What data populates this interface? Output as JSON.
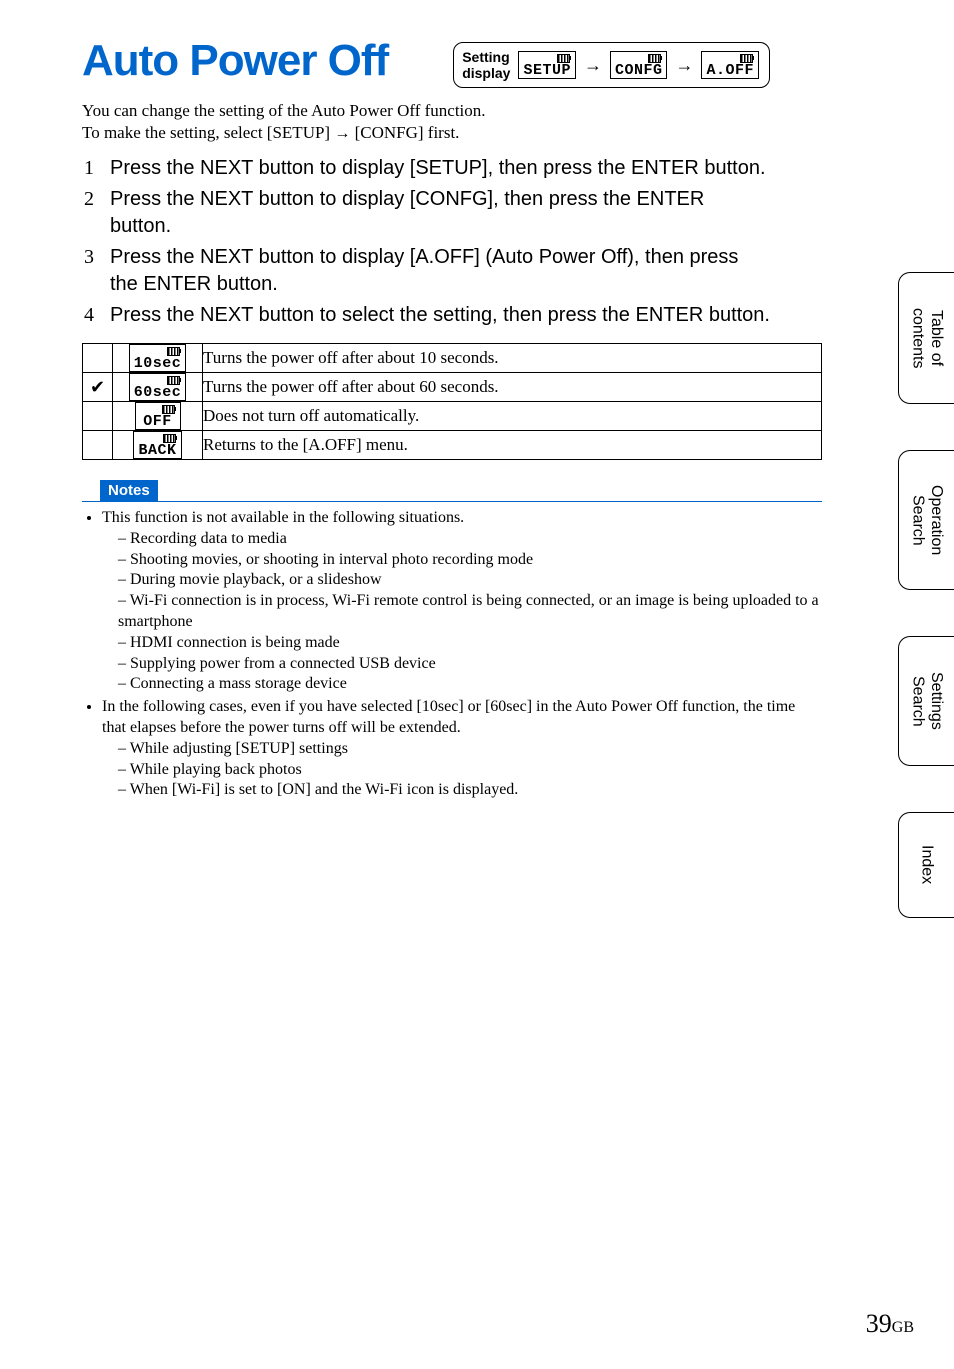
{
  "title": "Auto Power Off",
  "setting_display": {
    "label_line1": "Setting",
    "label_line2": "display",
    "step1": "SETUP",
    "step2": "CONFG",
    "step3": "A.OFF"
  },
  "intro_line1": "You can change the setting of the Auto Power Off function.",
  "intro_line2_a": "To make the setting, select [SETUP] ",
  "intro_line2_b": " [CONFG] first.",
  "steps": [
    "Press the NEXT button to display [SETUP], then press the ENTER button.",
    "Press the NEXT button to display [CONFG], then press the ENTER button.",
    "Press the NEXT button to display [A.OFF] (Auto Power Off), then press the ENTER button.",
    "Press the NEXT button to select the setting, then press the ENTER button."
  ],
  "options": [
    {
      "checked": false,
      "lcd": "10sec",
      "desc": "Turns the power off after about 10 seconds."
    },
    {
      "checked": true,
      "lcd": "60sec",
      "desc": "Turns the power off after about 60 seconds."
    },
    {
      "checked": false,
      "lcd": "OFF",
      "desc": "Does not turn off automatically."
    },
    {
      "checked": false,
      "lcd": "BACK",
      "desc": "Returns to the [A.OFF] menu."
    }
  ],
  "notes_header": "Notes",
  "notes": {
    "bullet1": "This function is not available in the following situations.",
    "b1_subs": [
      "Recording data to media",
      "Shooting movies, or shooting in interval photo recording mode",
      "During movie playback, or a slideshow",
      "Wi-Fi connection is in process, Wi-Fi remote control is being connected, or an image is being uploaded to a smartphone",
      "HDMI connection is being made",
      "Supplying power from a connected USB device",
      "Connecting a mass storage device"
    ],
    "bullet2": "In the following cases, even if you have selected [10sec] or [60sec] in the Auto Power Off function, the time that elapses before the power turns off will be extended.",
    "b2_subs": [
      "While adjusting [SETUP] settings",
      "While playing back photos",
      "When [Wi-Fi] is set to [ON] and the Wi-Fi icon is displayed."
    ]
  },
  "tabs": {
    "t1": "Table of\ncontents",
    "t2": "Operation\nSearch",
    "t3": "Settings\nSearch",
    "t4": "Index"
  },
  "page_number": "39",
  "page_suffix": "GB",
  "arrow_glyph": "→",
  "check_glyph": "✅"
}
